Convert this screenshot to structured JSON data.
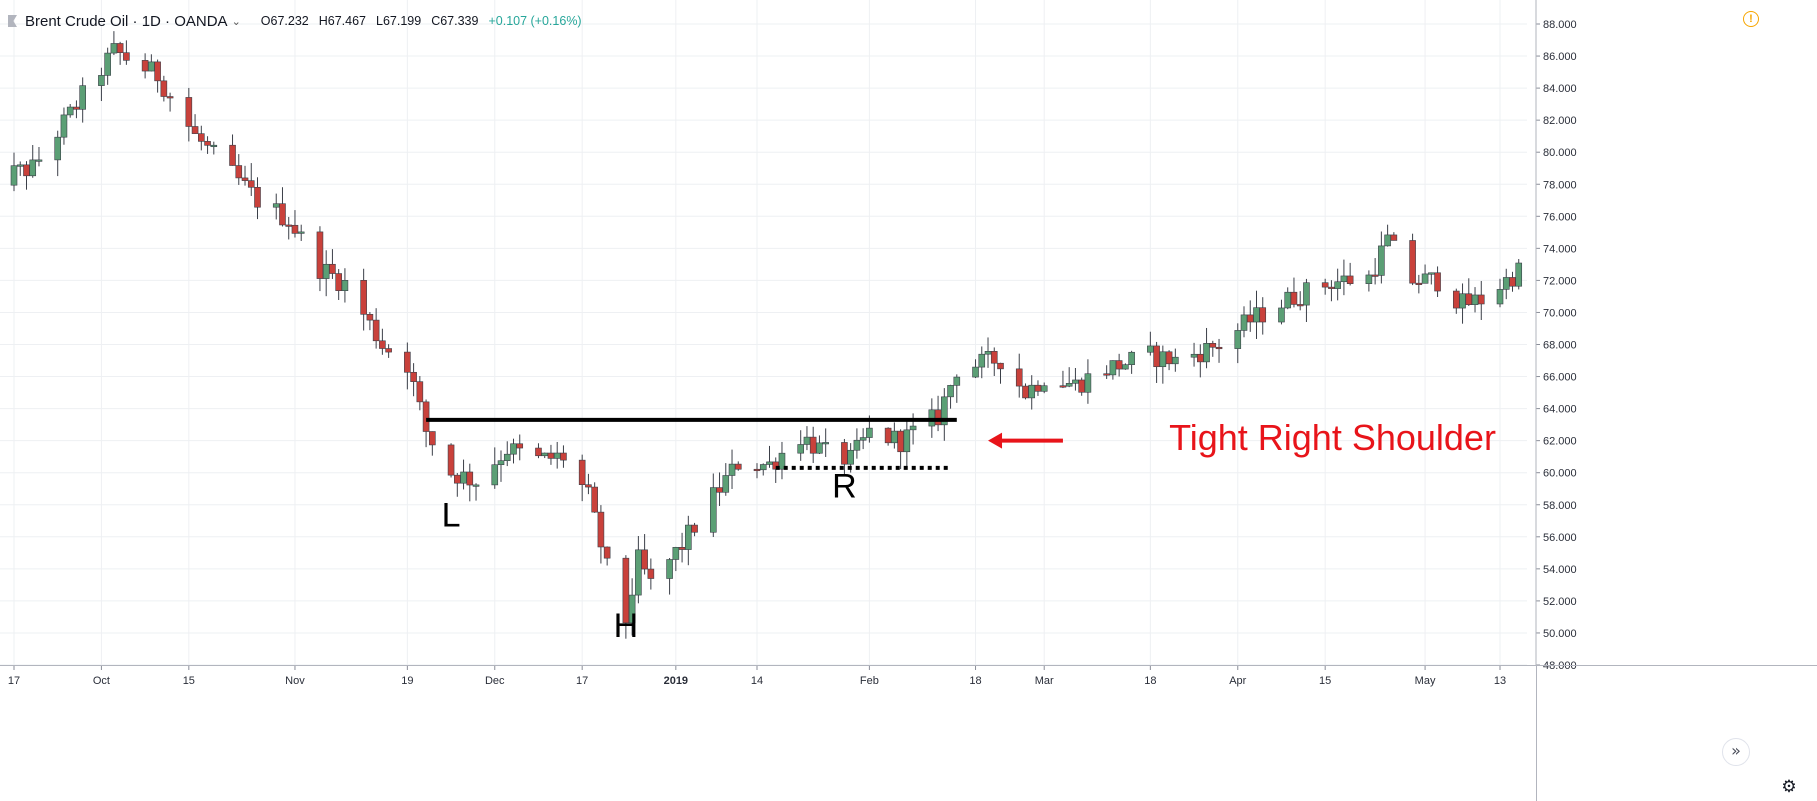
{
  "header": {
    "title": "Brent Crude Oil · 1D · OANDA",
    "open": "O67.232",
    "high": "H67.467",
    "low": "L67.199",
    "close": "C67.339",
    "change": "+0.107 (+0.16%)"
  },
  "colors": {
    "up": "#5b9f75",
    "down": "#c9413b",
    "annotation": "#e8141a",
    "background": "#ffffff",
    "grid": "#eef0f3"
  },
  "icons": {
    "warning": "warning-icon",
    "scroll": "scroll-to-realtime-icon",
    "settings": "gear-icon"
  },
  "chart_data": {
    "type": "candlestick",
    "ylim": [
      48,
      88
    ],
    "y_ticks": [
      "88.000",
      "86.000",
      "84.000",
      "82.000",
      "80.000",
      "78.000",
      "76.000",
      "74.000",
      "72.000",
      "70.000",
      "68.000",
      "66.000",
      "64.000",
      "62.000",
      "60.000",
      "58.000",
      "56.000",
      "54.000",
      "52.000",
      "50.000",
      "48.000"
    ],
    "x_ticks": [
      {
        "label": "17",
        "date": "2018-09-17"
      },
      {
        "label": "Oct",
        "date": "2018-10-01"
      },
      {
        "label": "15",
        "date": "2018-10-15"
      },
      {
        "label": "Nov",
        "date": "2018-11-01"
      },
      {
        "label": "19",
        "date": "2018-11-19"
      },
      {
        "label": "Dec",
        "date": "2018-12-03"
      },
      {
        "label": "17",
        "date": "2018-12-17"
      },
      {
        "label": "2019",
        "date": "2019-01-01"
      },
      {
        "label": "14",
        "date": "2019-01-14"
      },
      {
        "label": "Feb",
        "date": "2019-02-01"
      },
      {
        "label": "18",
        "date": "2019-02-18"
      },
      {
        "label": "Mar",
        "date": "2019-03-01"
      },
      {
        "label": "18",
        "date": "2019-03-18"
      },
      {
        "label": "Apr",
        "date": "2019-04-01"
      },
      {
        "label": "15",
        "date": "2019-04-15"
      },
      {
        "label": "May",
        "date": "2019-05-01"
      },
      {
        "label": "13",
        "date": "2019-05-13"
      }
    ],
    "price_path": [
      [
        "2018-09-12",
        78.2
      ],
      [
        "2018-09-20",
        79.0
      ],
      [
        "2018-10-03",
        86.3
      ],
      [
        "2018-10-10",
        84.8
      ],
      [
        "2018-10-16",
        81.0
      ],
      [
        "2018-10-26",
        77.0
      ],
      [
        "2018-10-31",
        75.8
      ],
      [
        "2018-11-05",
        72.8
      ],
      [
        "2018-11-09",
        71.8
      ],
      [
        "2018-11-15",
        68.0
      ],
      [
        "2018-11-19",
        66.8
      ],
      [
        "2018-11-22",
        62.6
      ],
      [
        "2018-11-26",
        60.0
      ],
      [
        "2018-11-30",
        59.5
      ],
      [
        "2018-12-05",
        61.5
      ],
      [
        "2018-12-10",
        60.8
      ],
      [
        "2018-12-14",
        61.0
      ],
      [
        "2018-12-18",
        58.5
      ],
      [
        "2018-12-21",
        54.0
      ],
      [
        "2018-12-24",
        50.8
      ],
      [
        "2018-12-26",
        54.5
      ],
      [
        "2018-12-28",
        53.0
      ],
      [
        "2019-01-02",
        55.5
      ],
      [
        "2019-01-07",
        58.5
      ],
      [
        "2019-01-11",
        60.6
      ],
      [
        "2019-01-16",
        60.5
      ],
      [
        "2019-01-21",
        62.3
      ],
      [
        "2019-01-25",
        61.2
      ],
      [
        "2019-01-29",
        60.8
      ],
      [
        "2019-02-01",
        62.5
      ],
      [
        "2019-02-06",
        62.0
      ],
      [
        "2019-02-12",
        63.5
      ],
      [
        "2019-02-15",
        66.5
      ],
      [
        "2019-02-19",
        66.8
      ],
      [
        "2019-02-22",
        67.1
      ],
      [
        "2019-02-26",
        65.0
      ],
      [
        "2019-03-01",
        66.0
      ],
      [
        "2019-03-06",
        65.5
      ],
      [
        "2019-03-11",
        66.5
      ],
      [
        "2019-03-18",
        67.3
      ],
      [
        "2019-03-22",
        67.0
      ],
      [
        "2019-03-29",
        68.0
      ],
      [
        "2019-04-03",
        69.5
      ],
      [
        "2019-04-10",
        71.0
      ],
      [
        "2019-04-16",
        71.9
      ],
      [
        "2019-04-22",
        72.2
      ],
      [
        "2019-04-25",
        74.5
      ],
      [
        "2019-04-29",
        72.0
      ],
      [
        "2019-05-03",
        72.0
      ],
      [
        "2019-05-07",
        70.5
      ],
      [
        "2019-05-10",
        70.8
      ],
      [
        "2019-05-16",
        72.6
      ]
    ],
    "neckline": {
      "start": "2018-11-22",
      "end": "2019-02-15",
      "value": 63.3
    },
    "shoulder_low": {
      "start": "2019-01-17",
      "end": "2019-02-14",
      "value": 60.3
    },
    "annotations": [
      {
        "text": "L",
        "date": "2018-11-26",
        "value": 57.2
      },
      {
        "text": "H",
        "date": "2018-12-24",
        "value": 50.3
      },
      {
        "text": "R",
        "date": "2019-01-28",
        "value": 59.0
      },
      {
        "text": "Tight Right Shoulder",
        "date": "2019-03-21",
        "value": 62.0
      }
    ],
    "arrow": {
      "from_date": "2019-03-04",
      "to_date": "2019-02-20",
      "value": 62.0
    }
  }
}
